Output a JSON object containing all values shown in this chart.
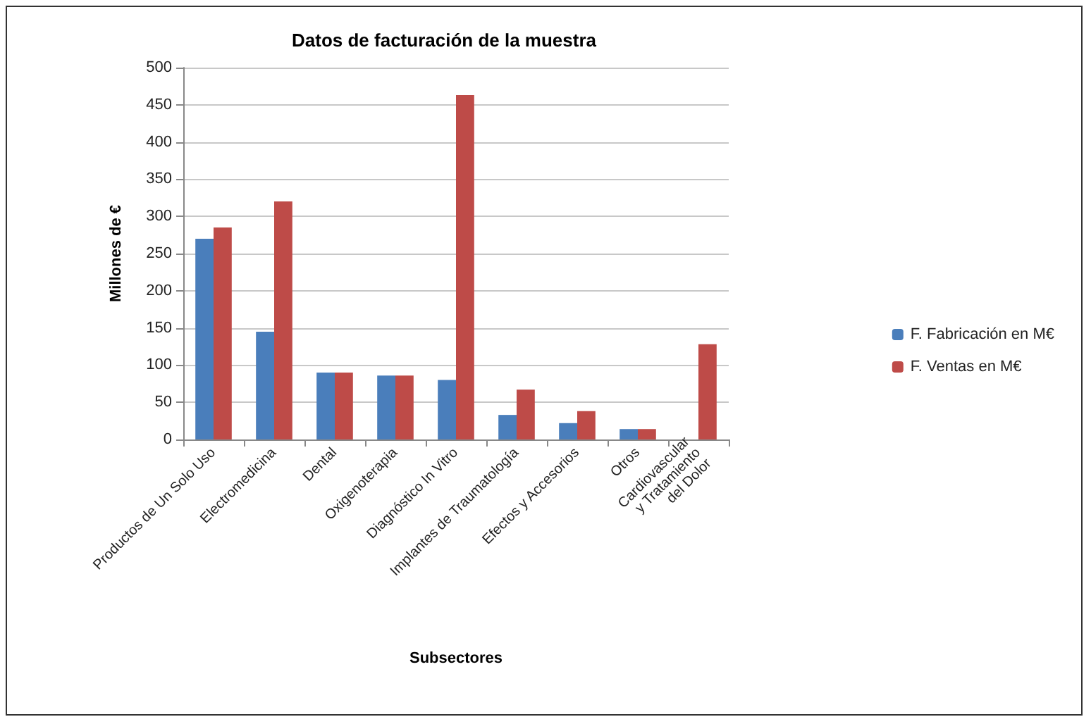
{
  "chart_data": {
    "type": "bar",
    "title": "Datos de facturación de la muestra",
    "xlabel": "Subsectores",
    "ylabel": "Millones de €",
    "categories": [
      "Productos de Un Solo Uso",
      "Electromedicina",
      "Dental",
      "Oxigenoterapia",
      "Diagnóstico In Vitro",
      "Implantes de Traumatología",
      "Efectos y Accesorios",
      "Otros",
      "Cardiovascular\ny Tratamiento\ndel Dolor"
    ],
    "series": [
      {
        "name": "F. Fabricación en M€",
        "color": "#4a7ebb",
        "values": [
          270,
          145,
          90,
          86,
          80,
          33,
          22,
          14,
          null
        ]
      },
      {
        "name": "F. Ventas en M€",
        "color": "#be4b48",
        "values": [
          285,
          320,
          90,
          86,
          463,
          67,
          38,
          14,
          128
        ]
      }
    ],
    "ylim": [
      0,
      500
    ],
    "yticks": [
      0,
      50,
      100,
      150,
      200,
      250,
      300,
      350,
      400,
      450,
      500
    ],
    "grid": "y",
    "legend": "right"
  }
}
